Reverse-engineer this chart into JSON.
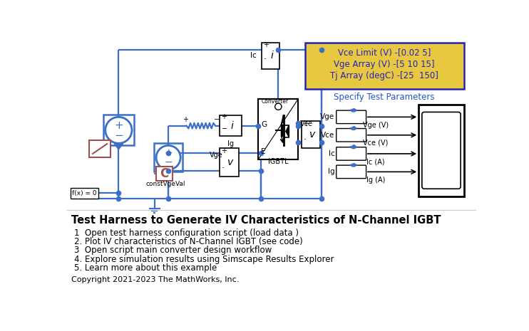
{
  "title": "Test Harness to Generate IV Characteristics of N-Channel IGBT",
  "bg_color": "#ffffff",
  "lc": "#3d6fc8",
  "blk": "#000000",
  "br": "#a05050",
  "yellow_fill": "#e8c840",
  "yellow_border": "#2222bb",
  "yellow_text": "#2222bb",
  "blue_text": "#2255cc",
  "yellow_lines": [
    "Vce Limit (V) -[0.02 5]",
    "Vge Array (V) -[5 10 15]",
    "Tj Array (degC) -[25  150]"
  ],
  "specify_text": "Specify Test Parameters",
  "scope_port_labels": [
    "Vge",
    "Vce",
    "Ic",
    "Ig"
  ],
  "scope_sig_labels": [
    "Vge (V)",
    "Vce (V)",
    "Ic (A)",
    "Ig (A)"
  ],
  "bullet_items": [
    "1  Open test harness configuration script (load data )",
    "2. Plot IV characteristics of N-Channel IGBT (see code)",
    "3  Open script main converter design workflow",
    "4. Explore simulation results using Simscape Results Explorer",
    "5. Learn more about this example"
  ],
  "copyright": "Copyright 2021-2023 The MathWorks, Inc."
}
